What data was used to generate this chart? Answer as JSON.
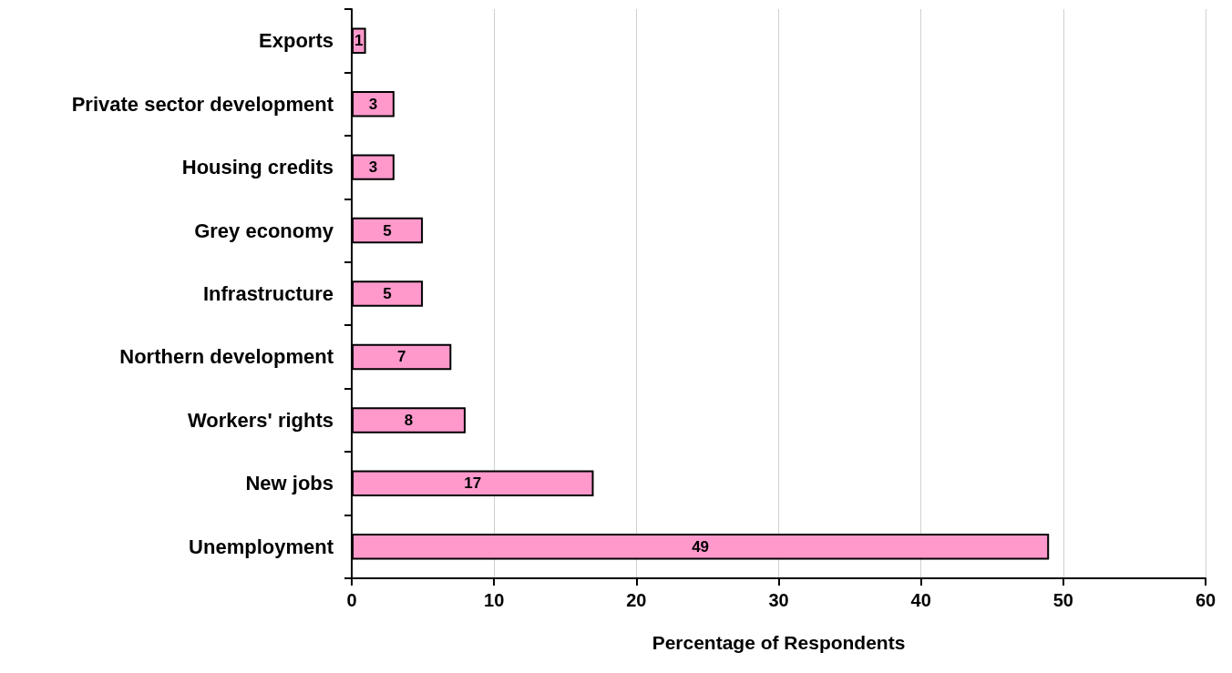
{
  "chart_data": {
    "type": "bar",
    "orientation": "horizontal",
    "xlabel": "Percentage of Respondents",
    "categories": [
      "Exports",
      "Private sector development",
      "Housing credits",
      "Grey economy",
      "Infrastructure",
      "Northern development",
      "Workers' rights",
      "New jobs",
      "Unemployment"
    ],
    "values": [
      1,
      3,
      3,
      5,
      5,
      7,
      8,
      17,
      49
    ],
    "color": "#ff99cc",
    "xlim": [
      0,
      60
    ],
    "xticks": [
      0,
      10,
      20,
      30,
      40,
      50,
      60
    ],
    "grid": "x",
    "data_labels": true
  }
}
